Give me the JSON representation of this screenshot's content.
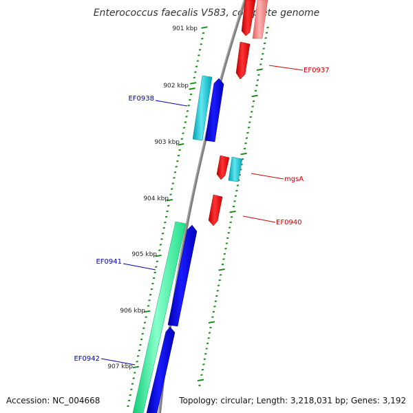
{
  "title": "Enterococcus faecalis V583, complete genome",
  "footer": {
    "accession": "Accession: NC_004668",
    "summary": "Topology: circular; Length: 3,218,031 bp; Genes: 3,192"
  },
  "colors": {
    "backbone": "#808080",
    "tick": "#1a8a1a",
    "forward_label": "#0000aa",
    "reverse_label": "#cc0000",
    "blue": "#0000ee",
    "cyan": "#00b8c8",
    "green": "#22ee99",
    "red": "#ee0000",
    "pink": "#f08080"
  },
  "ruler": {
    "labels": [
      "901 kbp",
      "902 kbp",
      "903 kbp",
      "904 kbp",
      "905 kbp",
      "906 kbp",
      "907 kbp"
    ]
  },
  "genes": [
    {
      "id": "EF0937",
      "strand": "reverse",
      "label": "EF0937"
    },
    {
      "id": "EF0938",
      "strand": "forward",
      "label": "EF0938"
    },
    {
      "id": "mgsA",
      "strand": "reverse",
      "label": "mgsA"
    },
    {
      "id": "EF0940",
      "strand": "reverse",
      "label": "EF0940"
    },
    {
      "id": "EF0941",
      "strand": "forward",
      "label": "EF0941"
    },
    {
      "id": "EF0942",
      "strand": "forward",
      "label": "EF0942"
    }
  ]
}
